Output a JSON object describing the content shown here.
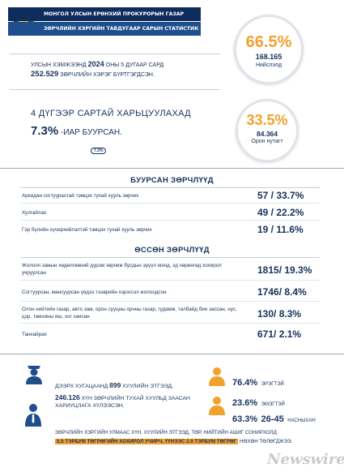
{
  "header": {
    "line1": "МОНГОЛ УЛСЫН ЕРӨНХИЙ ПРОКУРОРЫН ГАЗАР",
    "line2": "ЗӨРЧЛИЙН ХЭРГИЙН ТАВДУГААР САРЫН СТАТИСТИК"
  },
  "summary": {
    "intro_pre": "УЛСЫН ХЭМЖЭЭНД",
    "year": "2024",
    "intro_post": "ОНЫ 5 ДУГААР САРД",
    "total": "252.529",
    "total_text": "ЗӨРЧЛИЙН ХЭРЭГ БҮРТГЭГДСЭН.",
    "compare_line": "4 ДҮГЭЭР САРТАЙ ХАРЬЦУУЛАХАД",
    "decrease": "7.3%",
    "decrease_text": "-ИАР БУУРСАН.",
    "decrease_badge": "7.3%"
  },
  "circles": [
    {
      "percent": "66.5%",
      "count": "168.165",
      "label": "Нийслэлд"
    },
    {
      "percent": "33.5%",
      "count": "84.364",
      "label": "Орон нутагт"
    }
  ],
  "decreased": {
    "title": "БУУРСАН ЗӨРЧЛҮҮД",
    "rows": [
      {
        "label": "Архидан согтуурахтай тэмцэх тухай хууль зөрчих",
        "value": "57 / 33.7%"
      },
      {
        "label": "Хулгайлах",
        "value": "49 / 22.2%"
      },
      {
        "label": "Гэр бүлийн хүчирхийлэлтэй тэмцэх тухай хууль зөрчих",
        "value": "19 / 11.6%"
      }
    ]
  },
  "increased": {
    "title": "ӨССӨН ЗӨРЧЛҮҮД",
    "rows": [
      {
        "label": "Жолооч замын хөдөлгөөний дүрэм зөрчиж бусдын эрүүл мэнд, эд хөрөнгөд хохирол учруулсан",
        "value": "1815/ 19.3%"
      },
      {
        "label": "Согтуурсан, мансуурсан үедээ тээврийн хэрэгсэл жолоодсон",
        "value": "1746/ 8.4%"
      },
      {
        "label": "Олон нийтийн газар, авто зам, орон сууцны орчны газар, гудамж, талбайд бие зассан, нус, цэр, тамхины иш, хог хаясан",
        "value": "130/ 8.3%"
      },
      {
        "label": "Танхайрах",
        "value": "671/ 2.1%"
      }
    ]
  },
  "bottom": {
    "line1_pre": "ДЭЭРХ ХУГАЦААНД",
    "persons": "899",
    "line1_post": "ХУУЛИЙН ЭТГЭЭД,",
    "people": "246.126",
    "line2_post": "ХҮН ЗӨРЧЛИЙН ТУХАЙ ХУУЛЬД ЗААСАН",
    "line3": "ХАРИУЦЛАГА ХҮЛЭЭСЭН.",
    "male_pct": "76.4%",
    "male_label": "ЭРЭГТЭЙ",
    "female_pct": "23.6%",
    "female_label": "ЭМЭГТЭЙ",
    "age_pct": "63.3%",
    "age_range": "26-45",
    "age_label": "НАСНЫХАН",
    "footer_line1": "ЗӨРЧЛИЙН ХЭРГИЙН УЛМААС ХҮН, ХУУЛИЙН ЭТГЭЭД, ТӨР, НИЙТИЙН АШИГ СОНИРХОЛД",
    "footer_hl": "5.5 ТЭРБУМ ТӨГРӨГИЙН ХОХИРОЛ УЧИРЧ, ҮҮНЭЭС 2.9 ТЭРБУМ ТӨГРӨГ",
    "footer_post": "НӨХӨН ТӨЛӨГДЖЭЭ."
  },
  "watermark": "Newswire",
  "colors": {
    "navy": "#16325c",
    "orange": "#f0a22e",
    "header": "#0f2d5c"
  }
}
